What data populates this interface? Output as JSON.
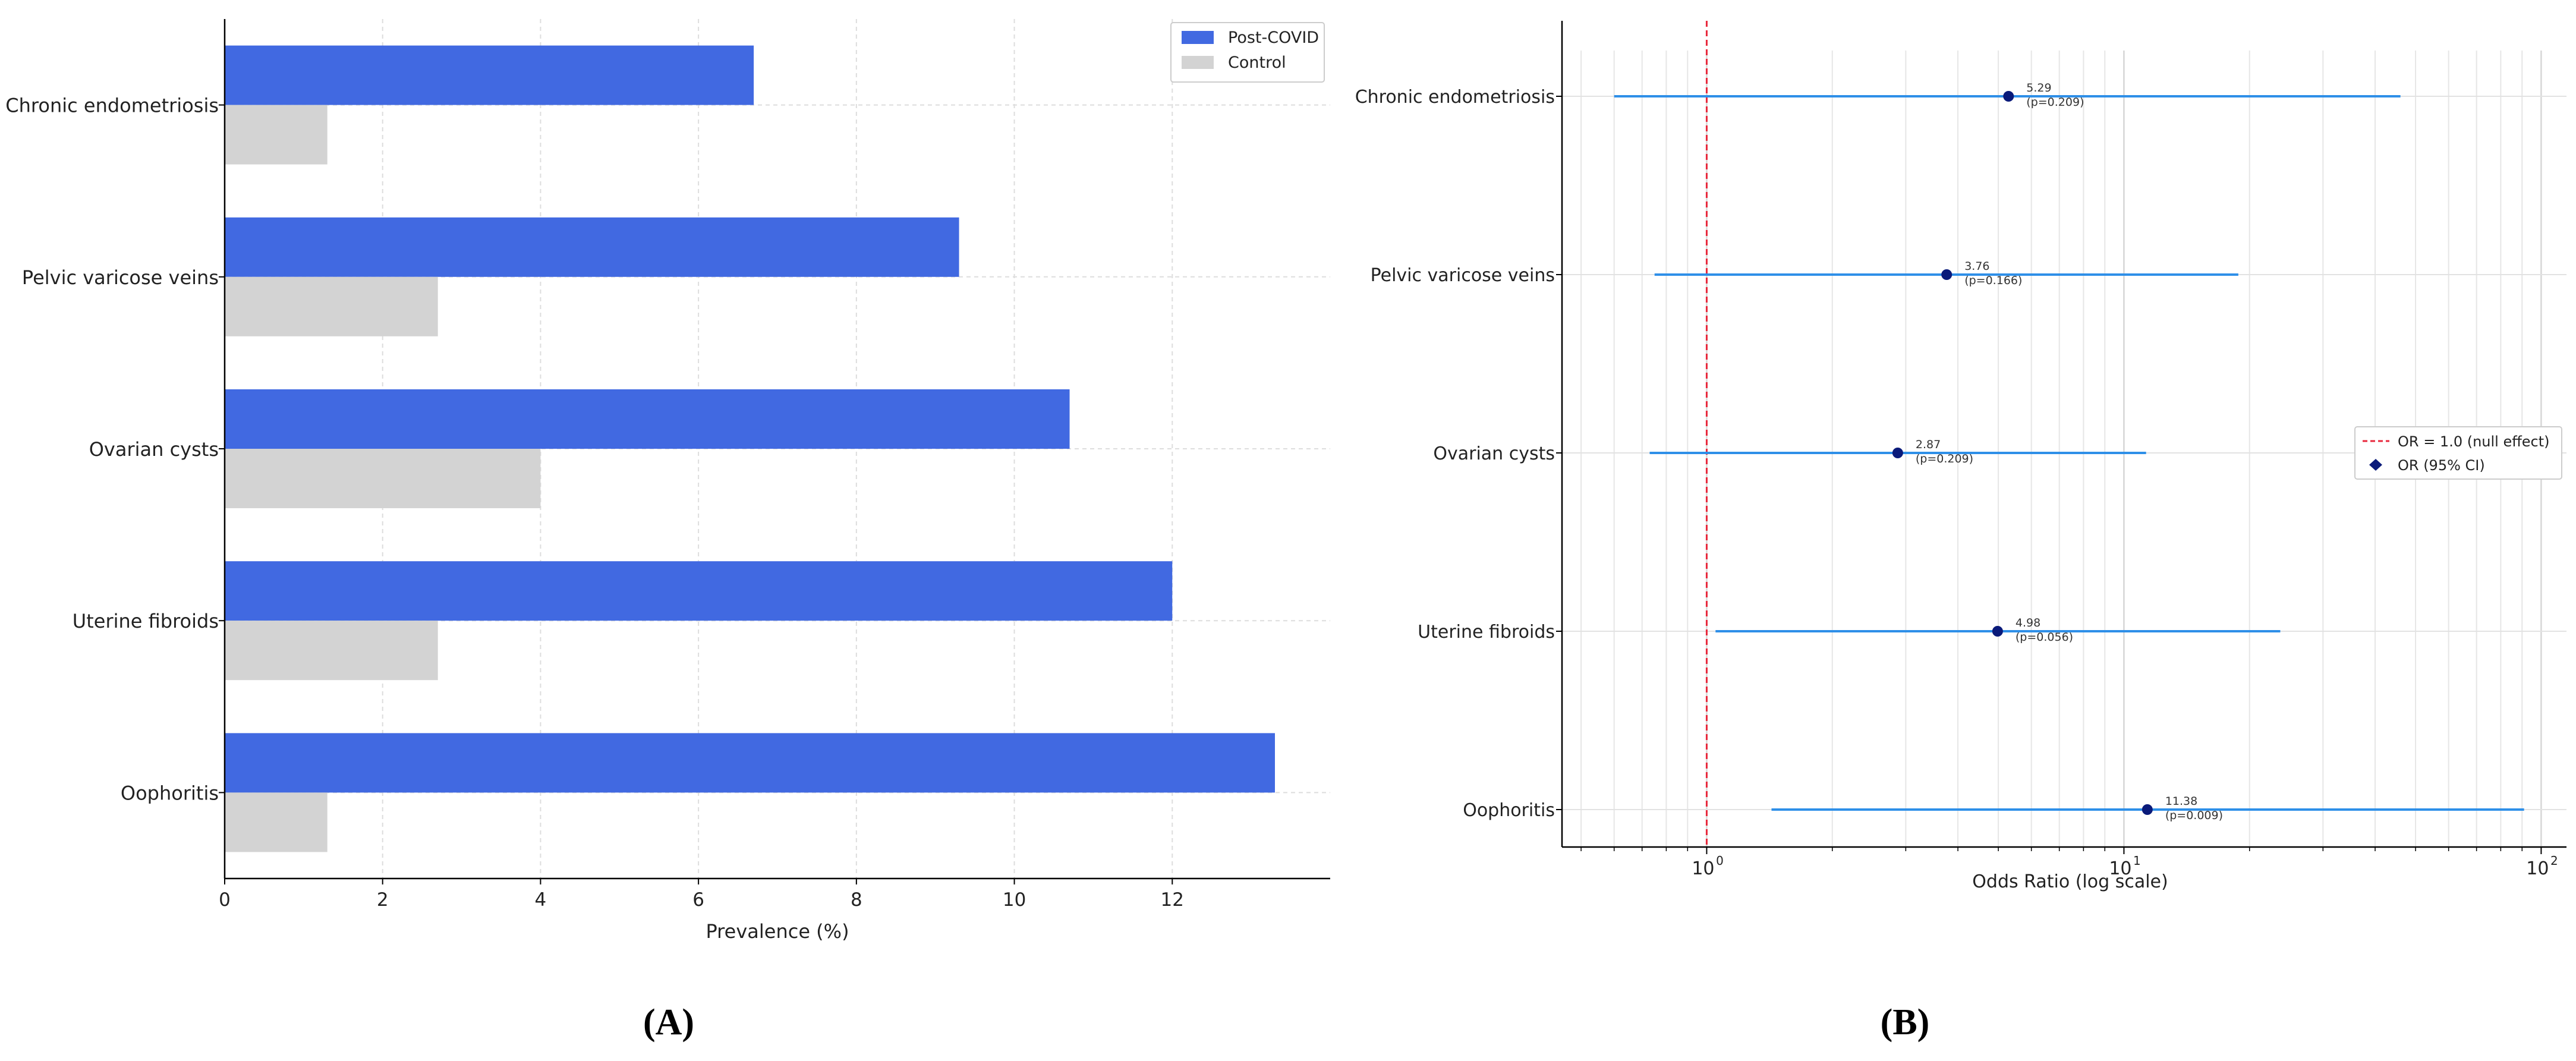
{
  "chart_data": [
    {
      "type": "bar",
      "orientation": "horizontal",
      "panel_label": "(A)",
      "categories": [
        "Chronic endometriosis",
        "Pelvic varicose veins",
        "Ovarian cysts",
        "Uterine fibroids",
        "Oophoritis"
      ],
      "series": [
        {
          "name": "Post-COVID",
          "color": "#4169e1",
          "values": [
            6.7,
            9.3,
            10.7,
            12.0,
            13.3
          ]
        },
        {
          "name": "Control",
          "color": "#d3d3d3",
          "values": [
            1.3,
            2.7,
            4.0,
            2.7,
            1.3
          ]
        }
      ],
      "xlabel": "Prevalence (%)",
      "ylabel": "",
      "xlim": [
        0,
        14
      ],
      "xticks": [
        0,
        2,
        4,
        6,
        8,
        10,
        12
      ],
      "grid": true,
      "legend_position": "top-right"
    },
    {
      "type": "forest",
      "panel_label": "(B)",
      "categories": [
        "Chronic endometriosis",
        "Pelvic varicose veins",
        "Ovarian cysts",
        "Uterine fibroids",
        "Oophoritis"
      ],
      "points": [
        {
          "label": "Chronic endometriosis",
          "or": 5.29,
          "ci": [
            0.6,
            46
          ],
          "or_text": "5.29",
          "p_text": "(p=0.209)"
        },
        {
          "label": "Pelvic varicose veins",
          "or": 3.76,
          "ci": [
            0.75,
            18.8
          ],
          "or_text": "3.76",
          "p_text": "(p=0.166)"
        },
        {
          "label": "Ovarian cysts",
          "or": 2.87,
          "ci": [
            0.73,
            11.3
          ],
          "or_text": "2.87",
          "p_text": "(p=0.209)"
        },
        {
          "label": "Uterine fibroids",
          "or": 4.98,
          "ci": [
            1.05,
            23.7
          ],
          "or_text": "4.98",
          "p_text": "(p=0.056)"
        },
        {
          "label": "Oophoritis",
          "or": 11.38,
          "ci": [
            1.43,
            91
          ],
          "or_text": "11.38",
          "p_text": "(p=0.009)"
        }
      ],
      "xscale": "log",
      "xlim": [
        0.45,
        115
      ],
      "xticks": [
        1,
        10,
        100
      ],
      "xtick_labels": [
        {
          "base": "10",
          "exp": "0"
        },
        {
          "base": "10",
          "exp": "1"
        },
        {
          "base": "10",
          "exp": "2"
        }
      ],
      "xlabel": "Odds Ratio (log scale)",
      "ylabel": "",
      "reference_line": {
        "value": 1,
        "color": "#e8283c",
        "style": "dashed"
      },
      "point_color": "#0a1a7a",
      "ci_color": "#2e8fe8",
      "legend_position": "center-right",
      "legend": [
        {
          "label": "OR = 1.0 (null effect)",
          "kind": "dashed-line",
          "color": "#e8283c"
        },
        {
          "label": "OR (95% CI)",
          "kind": "diamond",
          "color": "#0a1a7a"
        }
      ],
      "grid": true
    }
  ]
}
